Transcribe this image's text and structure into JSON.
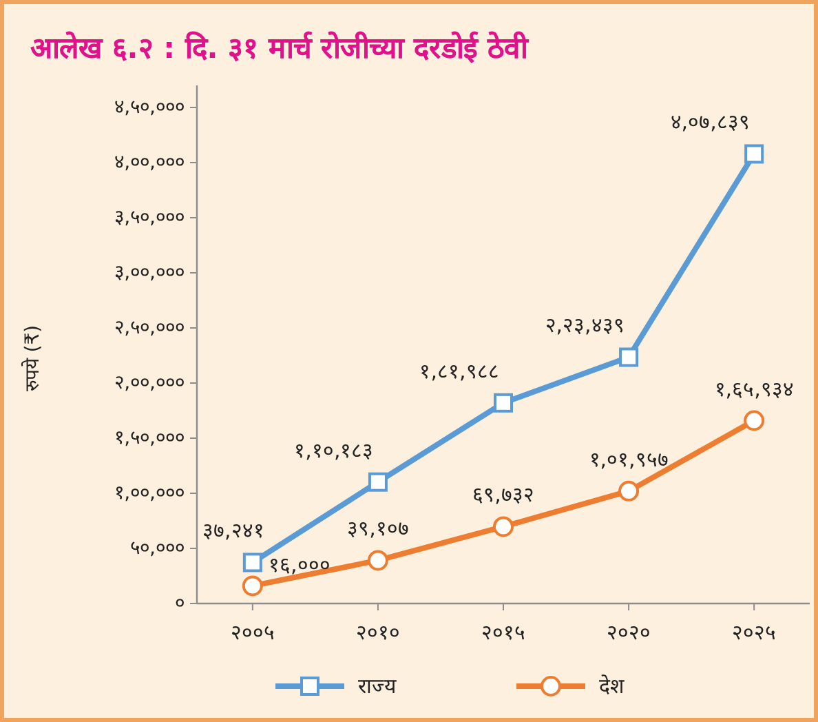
{
  "chart_data": {
    "type": "line",
    "title": "आलेख ६.२ : दि. ३१ मार्च रोजीच्या दरडोई ठेवी",
    "ylabel": "रुपये (₹)",
    "categories": [
      "२००५",
      "२०१०",
      "२०१५",
      "२०२०",
      "२०२५"
    ],
    "ylim": [
      0,
      470000
    ],
    "yticks": [
      {
        "value": 0,
        "label": "०"
      },
      {
        "value": 50000,
        "label": "५०,०००"
      },
      {
        "value": 100000,
        "label": "१,००,०००"
      },
      {
        "value": 150000,
        "label": "१,५०,०००"
      },
      {
        "value": 200000,
        "label": "२,००,०००"
      },
      {
        "value": 250000,
        "label": "२,५०,०००"
      },
      {
        "value": 300000,
        "label": "३,००,०००"
      },
      {
        "value": 350000,
        "label": "३,५०,०००"
      },
      {
        "value": 400000,
        "label": "४,००,०००"
      },
      {
        "value": 450000,
        "label": "४,५०,०००"
      }
    ],
    "legend": "bottom",
    "series": [
      {
        "name": "राज्य",
        "color": "#5b9bd5",
        "marker": "square",
        "values": [
          37241,
          110183,
          181988,
          223439,
          407839
        ],
        "value_labels": [
          "३७,२४१",
          "१,१०,१८३",
          "१,८१,९८८",
          "२,२३,४३९",
          "४,०७,८३९"
        ]
      },
      {
        "name": "देश",
        "color": "#ed7d31",
        "marker": "circle",
        "values": [
          16000,
          39107,
          69732,
          101957,
          165934
        ],
        "value_labels": [
          "१६,०००",
          "३९,१०७",
          "६९,७३२",
          "१,०१,९५७",
          "१,६५,९३४"
        ]
      }
    ]
  }
}
